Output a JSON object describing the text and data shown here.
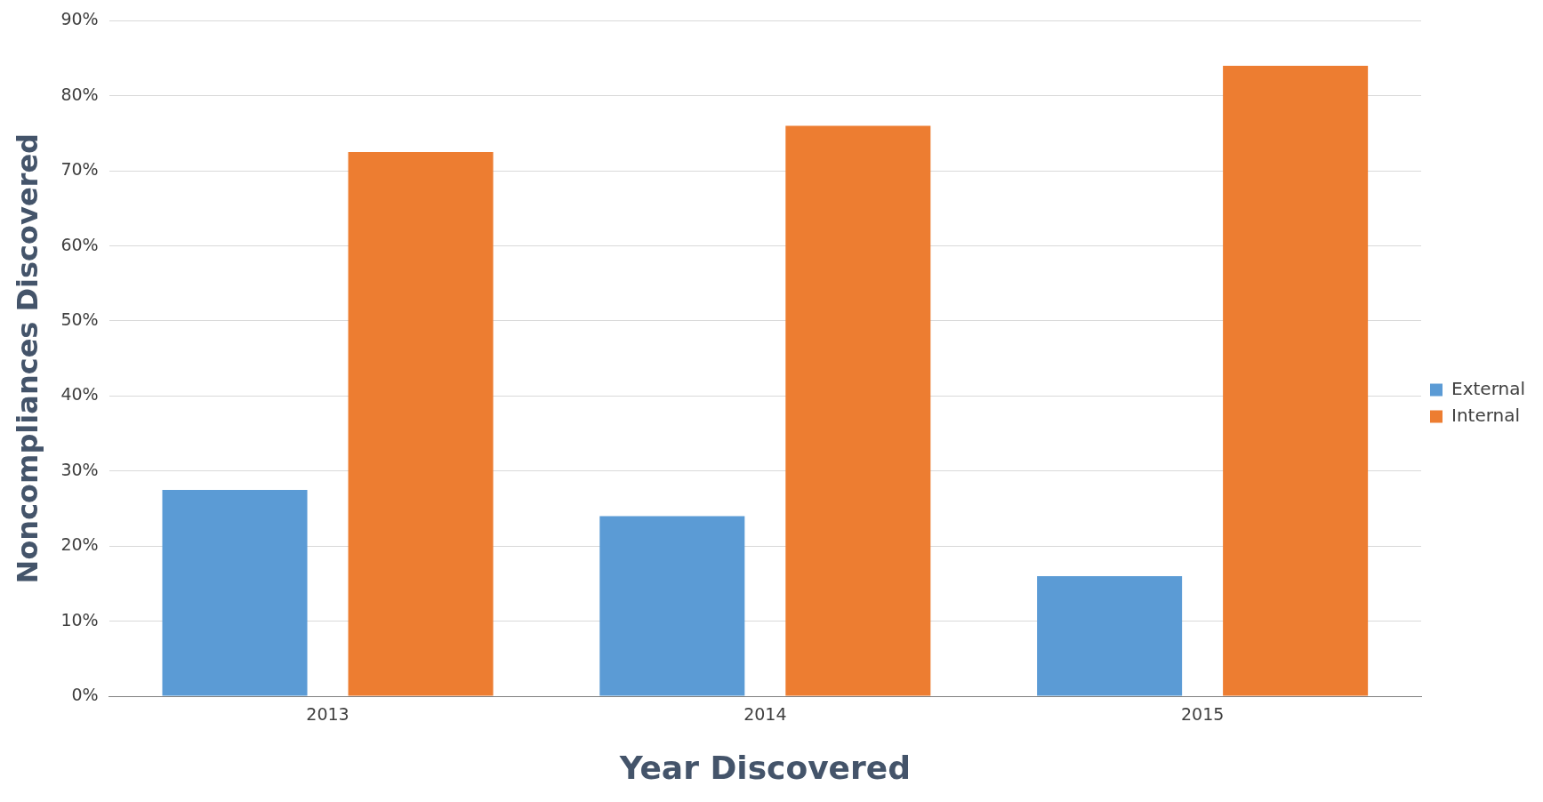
{
  "chart_data": {
    "type": "bar",
    "xlabel": "Year Discovered",
    "ylabel": "Noncompliances Discovered",
    "categories": [
      "2013",
      "2014",
      "2015"
    ],
    "series": [
      {
        "name": "External",
        "color": "#5b9bd5",
        "values": [
          27.5,
          24,
          16
        ]
      },
      {
        "name": "Internal",
        "color": "#ed7d31",
        "values": [
          72.5,
          76,
          84
        ]
      }
    ],
    "ylim": [
      0,
      90
    ],
    "yticks": [
      {
        "value": 0,
        "label": "0%"
      },
      {
        "value": 10,
        "label": "10%"
      },
      {
        "value": 20,
        "label": "20%"
      },
      {
        "value": 30,
        "label": "30%"
      },
      {
        "value": 40,
        "label": "40%"
      },
      {
        "value": 50,
        "label": "50%"
      },
      {
        "value": 60,
        "label": "60%"
      },
      {
        "value": 70,
        "label": "70%"
      },
      {
        "value": 80,
        "label": "80%"
      },
      {
        "value": 90,
        "label": "90%"
      }
    ],
    "grid": "y",
    "legend": "right"
  }
}
